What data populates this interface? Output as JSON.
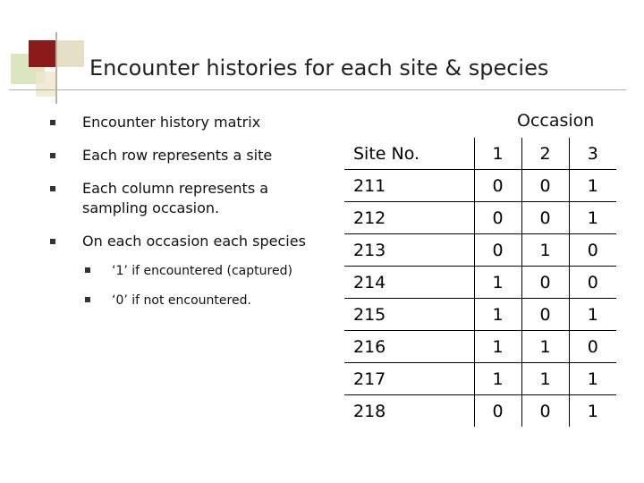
{
  "title": "Encounter histories for each site & species",
  "bullets": [
    "Encounter history matrix",
    "Each row represents a site",
    "Each column represents a sampling occasion.",
    "On each occasion each species"
  ],
  "sub_bullets": [
    "‘1’ if encountered (captured)",
    "‘0’ if not encountered."
  ],
  "table": {
    "group_header": "Occasion",
    "header": [
      "Site No.",
      "1",
      "2",
      "3"
    ],
    "rows": [
      [
        "211",
        "0",
        "0",
        "1"
      ],
      [
        "212",
        "0",
        "0",
        "1"
      ],
      [
        "213",
        "0",
        "1",
        "0"
      ],
      [
        "214",
        "1",
        "0",
        "0"
      ],
      [
        "215",
        "1",
        "0",
        "1"
      ],
      [
        "216",
        "1",
        "1",
        "0"
      ],
      [
        "217",
        "1",
        "1",
        "1"
      ],
      [
        "218",
        "0",
        "0",
        "1"
      ]
    ]
  }
}
